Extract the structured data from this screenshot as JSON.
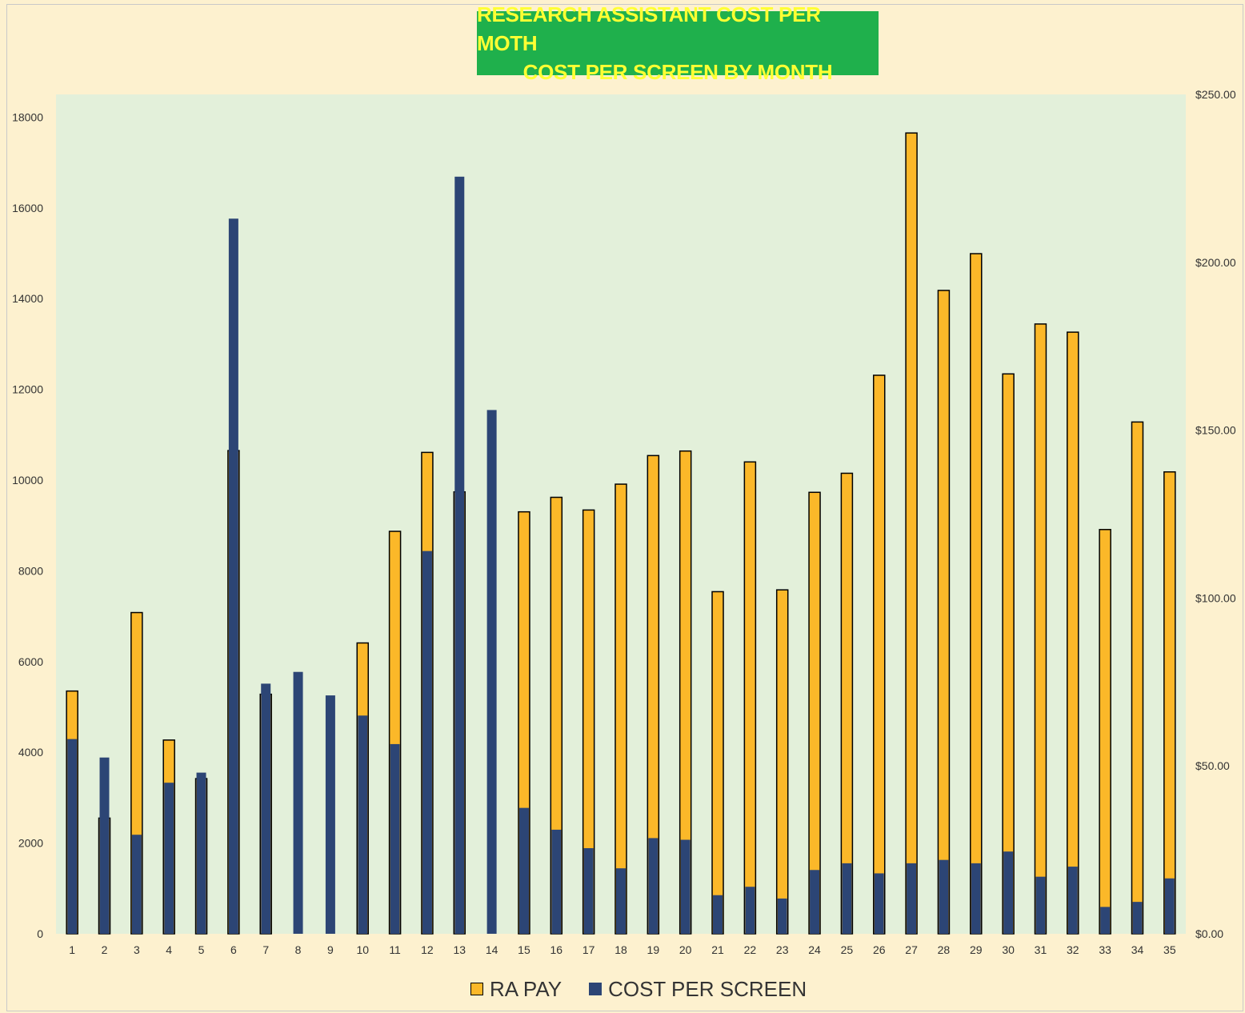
{
  "chart_data": {
    "type": "bar",
    "title": "RESEARCH ASSISTANT COST PER MOTH",
    "subtitle": "COST PER SCREEN BY MONTH",
    "categories": [
      "1",
      "2",
      "3",
      "4",
      "5",
      "6",
      "7",
      "8",
      "9",
      "10",
      "11",
      "12",
      "13",
      "14",
      "15",
      "16",
      "17",
      "18",
      "19",
      "20",
      "21",
      "22",
      "23",
      "24",
      "25",
      "26",
      "27",
      "28",
      "29",
      "30",
      "31",
      "32",
      "33",
      "34",
      "35"
    ],
    "y_left": {
      "ticks": [
        "0",
        "2000",
        "4000",
        "6000",
        "8000",
        "10000",
        "12000",
        "14000",
        "16000",
        "18000"
      ],
      "min": 0,
      "max": 18500
    },
    "y_right": {
      "ticks": [
        "$0.00",
        "$50.00",
        "$100.00",
        "$150.00",
        "$200.00",
        "$250.00"
      ],
      "min": 0,
      "max": 250
    },
    "series": [
      {
        "name": "RA PAY",
        "axis": "left",
        "color": "#fbb829",
        "values": [
          5350,
          2550,
          7080,
          4270,
          3420,
          10650,
          5280,
          0,
          0,
          6410,
          8870,
          10610,
          9740,
          0,
          9300,
          9620,
          9340,
          9910,
          10540,
          10640,
          7540,
          10400,
          7580,
          9730,
          10150,
          12310,
          17650,
          14180,
          14990,
          12340,
          13440,
          13260,
          8910,
          11280,
          10180
        ]
      },
      {
        "name": "COST PER SCREEN",
        "axis": "right",
        "color": "#2c4575",
        "values": [
          58,
          52.5,
          29.5,
          45,
          48,
          213,
          74.5,
          78,
          71,
          65,
          56.5,
          114,
          225.5,
          156,
          37.5,
          31,
          25.5,
          19.5,
          28.5,
          28,
          11.5,
          14,
          10.5,
          19,
          21,
          18,
          21,
          22,
          21,
          24.5,
          17,
          20,
          8,
          9.5,
          16.5
        ]
      }
    ]
  },
  "legend": {
    "ra_pay": "RA PAY",
    "cost_per_screen": "COST PER SCREEN"
  },
  "colors": {
    "background": "#fdf1cf",
    "plot_area": "#e3f0da",
    "title_bg": "#1fb04c",
    "title_text": "#ffff33"
  }
}
